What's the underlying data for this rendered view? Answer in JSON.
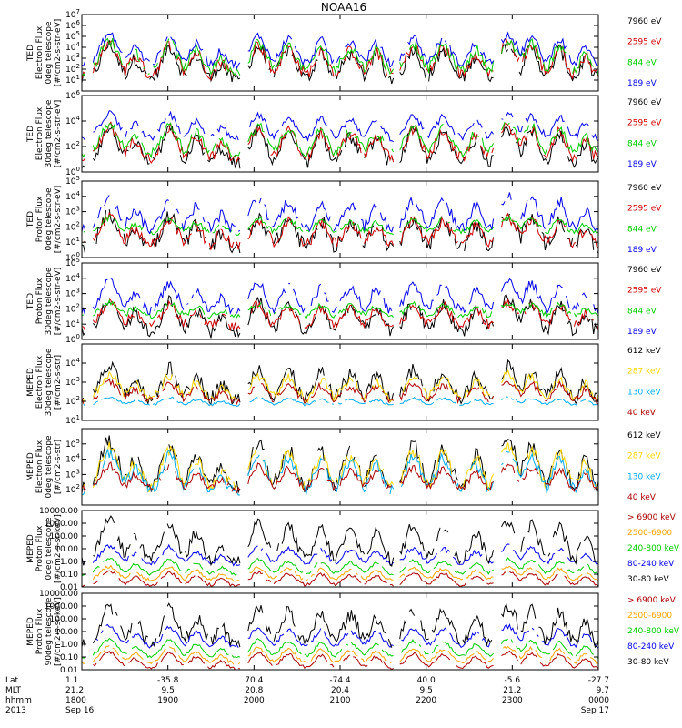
{
  "chart_data": {
    "type": "line",
    "title": "NOAA16",
    "x_label_rows": [
      {
        "name": "Lat",
        "values": [
          "1.1",
          "-35.8",
          "70.4",
          "-74.4",
          "40.0",
          "-5.6",
          "-27.7"
        ]
      },
      {
        "name": "MLT",
        "values": [
          "21.2",
          "9.5",
          "20.8",
          "20.4",
          "9.5",
          "21.2",
          "9.7"
        ]
      },
      {
        "name": "hhmm",
        "values": [
          "1800",
          "1900",
          "2000",
          "2100",
          "2200",
          "2300",
          "0000"
        ]
      },
      {
        "name": "2013",
        "values": [
          "Sep 16",
          "",
          "",
          "",
          "",
          "",
          "Sep 17"
        ]
      }
    ],
    "x_range_hours": [
      18,
      24
    ],
    "panels": [
      {
        "ylabel": [
          "TED",
          "Electron Flux",
          "0deg telescope",
          "[#/cm2-s-str-eV]"
        ],
        "log": true,
        "ylim_exp": [
          0,
          7
        ],
        "yticks": [
          {
            "t": "10",
            "e": "1",
            "v": 1
          },
          {
            "t": "10",
            "e": "2",
            "v": 2
          },
          {
            "t": "10",
            "e": "3",
            "v": 3
          },
          {
            "t": "10",
            "e": "4",
            "v": 4
          },
          {
            "t": "10",
            "e": "5",
            "v": 5
          },
          {
            "t": "10",
            "e": "6",
            "v": 6
          },
          {
            "t": "10",
            "e": "7",
            "v": 7
          }
        ],
        "series": [
          {
            "name": "7960 eV",
            "color": "#000000",
            "base": 1.0,
            "peak": 4.2,
            "spread": 2.0
          },
          {
            "name": "2595 eV",
            "color": "#cc0000",
            "base": 1.4,
            "peak": 4.4,
            "spread": 1.8
          },
          {
            "name": "844 eV",
            "color": "#00cc00",
            "base": 1.8,
            "peak": 4.6,
            "spread": 1.6
          },
          {
            "name": "189 eV",
            "color": "#0000ee",
            "base": 2.4,
            "peak": 5.2,
            "spread": 1.2
          }
        ]
      },
      {
        "ylabel": [
          "TED",
          "Electron Flux",
          "30deg telescope",
          "[#/cm2-s-str-eV]"
        ],
        "log": true,
        "ylim_exp": [
          0,
          6
        ],
        "yticks": [
          {
            "t": "10",
            "e": "0",
            "v": 0
          },
          {
            "t": "10",
            "e": "2",
            "v": 2
          },
          {
            "t": "10",
            "e": "4",
            "v": 4
          },
          {
            "t": "10",
            "e": "6",
            "v": 6
          }
        ],
        "series": [
          {
            "name": "7960 eV",
            "color": "#000000",
            "base": 0.6,
            "peak": 3.4,
            "spread": 1.6
          },
          {
            "name": "2595 eV",
            "color": "#cc0000",
            "base": 1.0,
            "peak": 3.6,
            "spread": 1.4
          },
          {
            "name": "844 eV",
            "color": "#00cc00",
            "base": 1.4,
            "peak": 3.8,
            "spread": 1.2
          },
          {
            "name": "189 eV",
            "color": "#0000ee",
            "base": 2.6,
            "peak": 4.6,
            "spread": 0.9
          }
        ]
      },
      {
        "ylabel": [
          "TED",
          "Proton Flux",
          "0deg telescope",
          "[#/cm2-s-str-eV]"
        ],
        "log": true,
        "ylim_exp": [
          0,
          5
        ],
        "yticks": [
          {
            "t": "10",
            "e": "0",
            "v": 0
          },
          {
            "t": "10",
            "e": "1",
            "v": 1
          },
          {
            "t": "10",
            "e": "2",
            "v": 2
          },
          {
            "t": "10",
            "e": "3",
            "v": 3
          },
          {
            "t": "10",
            "e": "4",
            "v": 4
          },
          {
            "t": "10",
            "e": "5",
            "v": 5
          }
        ],
        "series": [
          {
            "name": "7960 eV",
            "color": "#000000",
            "base": 0.6,
            "peak": 2.8,
            "spread": 1.6
          },
          {
            "name": "2595 eV",
            "color": "#cc0000",
            "base": 0.8,
            "peak": 2.6,
            "spread": 1.2
          },
          {
            "name": "844 eV",
            "color": "#00cc00",
            "base": 1.6,
            "peak": 2.6,
            "spread": 0.6
          },
          {
            "name": "189 eV",
            "color": "#0000ee",
            "base": 1.8,
            "peak": 4.0,
            "spread": 1.2
          }
        ]
      },
      {
        "ylabel": [
          "TED",
          "Proton Flux",
          "30deg telescope",
          "[#/cm2-s-str-eV]"
        ],
        "log": true,
        "ylim_exp": [
          0,
          5
        ],
        "yticks": [
          {
            "t": "10",
            "e": "0",
            "v": 0
          },
          {
            "t": "10",
            "e": "1",
            "v": 1
          },
          {
            "t": "10",
            "e": "2",
            "v": 2
          },
          {
            "t": "10",
            "e": "3",
            "v": 3
          },
          {
            "t": "10",
            "e": "4",
            "v": 4
          },
          {
            "t": "10",
            "e": "5",
            "v": 5
          }
        ],
        "series": [
          {
            "name": "7960 eV",
            "color": "#000000",
            "base": 0.4,
            "peak": 2.6,
            "spread": 1.4
          },
          {
            "name": "2595 eV",
            "color": "#cc0000",
            "base": 0.8,
            "peak": 2.4,
            "spread": 1.0
          },
          {
            "name": "844 eV",
            "color": "#00cc00",
            "base": 1.5,
            "peak": 2.4,
            "spread": 0.6
          },
          {
            "name": "189 eV",
            "color": "#0000ee",
            "base": 1.8,
            "peak": 3.8,
            "spread": 1.0
          }
        ]
      },
      {
        "ylabel": [
          "MEPED",
          "Electron Flux",
          "30deg telescope",
          "[#/cm2-s-str]"
        ],
        "log": true,
        "ylim_exp": [
          1,
          5
        ],
        "yticks": [
          {
            "t": "10",
            "e": "1",
            "v": 1
          },
          {
            "t": "10",
            "e": "2",
            "v": 2
          },
          {
            "t": "10",
            "e": "3",
            "v": 3
          },
          {
            "t": "10",
            "e": "4",
            "v": 4
          }
        ],
        "series": [
          {
            "name": "612 keV",
            "color": "#000000",
            "base": 2.1,
            "peak": 3.8,
            "spread": 1.2
          },
          {
            "name": "287 keV",
            "color": "#ffd700",
            "base": 2.1,
            "peak": 3.4,
            "spread": 0.8
          },
          {
            "name": "130 keV",
            "color": "#00aaee",
            "base": 1.8,
            "peak": 2.2,
            "spread": 0.2
          },
          {
            "name": "40 keV",
            "color": "#aa0000",
            "base": 2.0,
            "peak": 3.0,
            "spread": 0.6
          }
        ]
      },
      {
        "ylabel": [
          "MEPED",
          "Electron Flux",
          "0deg telescope",
          "[#/cm2-s-str]"
        ],
        "log": true,
        "ylim_exp": [
          1,
          6
        ],
        "yticks": [
          {
            "t": "10",
            "e": "2",
            "v": 2
          },
          {
            "t": "10",
            "e": "3",
            "v": 3
          },
          {
            "t": "10",
            "e": "4",
            "v": 4
          },
          {
            "t": "10",
            "e": "5",
            "v": 5
          }
        ],
        "series": [
          {
            "name": "612 keV",
            "color": "#000000",
            "base": 2.1,
            "peak": 5.2,
            "spread": 1.6
          },
          {
            "name": "287 keV",
            "color": "#ffd700",
            "base": 2.1,
            "peak": 4.8,
            "spread": 1.4
          },
          {
            "name": "130 keV",
            "color": "#00aaee",
            "base": 1.9,
            "peak": 4.4,
            "spread": 1.2
          },
          {
            "name": "40 keV",
            "color": "#aa0000",
            "base": 2.0,
            "peak": 3.6,
            "spread": 0.8
          }
        ]
      },
      {
        "ylabel": [
          "MEPED",
          "Proton Flux",
          "0deg telescope",
          "[#/cm2-s-sr-keV]"
        ],
        "log": true,
        "ylim_exp": [
          -2,
          4
        ],
        "yticks": [
          {
            "t": "10000.00",
            "v": 4
          },
          {
            "t": "1000.00",
            "v": 3
          },
          {
            "t": "100.00",
            "v": 2
          },
          {
            "t": "10.00",
            "v": 1
          },
          {
            "t": "1.00",
            "v": 0
          },
          {
            "t": "0.10",
            "v": -1
          },
          {
            "t": "0.01",
            "v": -2
          }
        ],
        "series": [
          {
            "name": "> 6900 keV",
            "color": "#aa0000",
            "base": -1.9,
            "peak": -0.8,
            "spread": 0.4
          },
          {
            "name": "2500-6900",
            "color": "#ffa500",
            "base": -1.5,
            "peak": -0.4,
            "spread": 0.4
          },
          {
            "name": "240-800 keV",
            "color": "#00cc00",
            "base": -1.0,
            "peak": 0.2,
            "spread": 0.4
          },
          {
            "name": "80-240 keV",
            "color": "#0000ee",
            "base": -0.2,
            "peak": 1.2,
            "spread": 0.6
          },
          {
            "name": "30-80 keV",
            "color": "#000000",
            "base": 0.0,
            "peak": 3.2,
            "spread": 1.6
          }
        ]
      },
      {
        "ylabel": [
          "MEPED",
          "Proton Flux",
          "90deg telescope",
          "[#/cm2-s-sr-keV]"
        ],
        "log": true,
        "ylim_exp": [
          -2,
          4
        ],
        "yticks": [
          {
            "t": "10000.00",
            "v": 4
          },
          {
            "t": "1000.00",
            "v": 3
          },
          {
            "t": "100.00",
            "v": 2
          },
          {
            "t": "10.00",
            "v": 1
          },
          {
            "t": "1.00",
            "v": 0
          },
          {
            "t": "0.10",
            "v": -1
          },
          {
            "t": "0.01",
            "v": -2
          }
        ],
        "series": [
          {
            "name": "> 6900 keV",
            "color": "#aa0000",
            "base": -1.9,
            "peak": -0.6,
            "spread": 0.4
          },
          {
            "name": "2500-6900",
            "color": "#ffa500",
            "base": -1.5,
            "peak": -0.2,
            "spread": 0.4
          },
          {
            "name": "240-800 keV",
            "color": "#00cc00",
            "base": -1.0,
            "peak": 0.4,
            "spread": 0.4
          },
          {
            "name": "80-240 keV",
            "color": "#0000ee",
            "base": -0.2,
            "peak": 1.4,
            "spread": 0.6
          },
          {
            "name": "30-80 keV",
            "color": "#000000",
            "base": 0.0,
            "peak": 3.0,
            "spread": 1.6
          }
        ]
      }
    ],
    "passes": [
      {
        "t": 18.32,
        "w": 0.14,
        "h": 1.0
      },
      {
        "t": 18.62,
        "w": 0.1,
        "h": 0.6
      },
      {
        "t": 19.02,
        "w": 0.12,
        "h": 0.95
      },
      {
        "t": 19.33,
        "w": 0.1,
        "h": 0.7
      },
      {
        "t": 19.62,
        "w": 0.08,
        "h": 0.45
      },
      {
        "t": 20.05,
        "w": 0.12,
        "h": 0.95
      },
      {
        "t": 20.4,
        "w": 0.12,
        "h": 0.85
      },
      {
        "t": 20.78,
        "w": 0.1,
        "h": 0.8
      },
      {
        "t": 21.12,
        "w": 0.12,
        "h": 0.75
      },
      {
        "t": 21.42,
        "w": 0.1,
        "h": 0.7
      },
      {
        "t": 21.85,
        "w": 0.12,
        "h": 0.9
      },
      {
        "t": 22.2,
        "w": 0.12,
        "h": 0.85
      },
      {
        "t": 22.58,
        "w": 0.1,
        "h": 0.7
      },
      {
        "t": 22.95,
        "w": 0.14,
        "h": 1.0
      },
      {
        "t": 23.22,
        "w": 0.12,
        "h": 0.9
      },
      {
        "t": 23.55,
        "w": 0.1,
        "h": 0.85
      },
      {
        "t": 23.85,
        "w": 0.08,
        "h": 0.6
      }
    ],
    "gaps": [
      [
        18.05,
        18.12
      ],
      [
        19.85,
        19.92
      ],
      [
        21.62,
        21.68
      ],
      [
        22.8,
        22.86
      ]
    ]
  }
}
